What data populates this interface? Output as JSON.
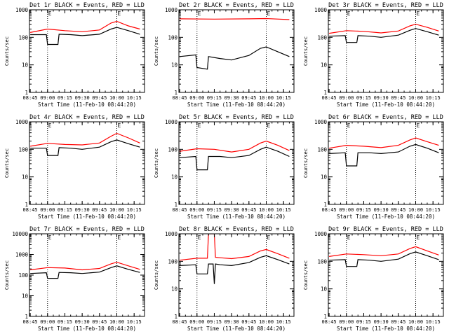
{
  "figure": {
    "colors": {
      "events": "#000000",
      "lld": "#ff0000",
      "axis": "#000000",
      "background": "#ffffff"
    }
  },
  "chart_data": [
    {
      "type": "line",
      "title": "Det 1r BLACK = Events, RED = LLD",
      "xlabel": "Start Time (11-Feb-10 08:44:20)",
      "ylabel": "Counts/sec",
      "y_scale": "log",
      "ylim": [
        1,
        1000
      ],
      "y_ticks": [
        "1",
        "10",
        "100",
        "1000"
      ],
      "x_ticks": [
        "08:45",
        "09:00",
        "09:15",
        "09:30",
        "09:45",
        "10:00",
        "10:15"
      ],
      "xlim": [
        "08:44:20",
        "10:24:00"
      ],
      "annotation": "E",
      "vlines": [
        "09:00",
        "10:00"
      ],
      "dotted_vlines": [
        "09:00",
        "10:00"
      ],
      "grid": false,
      "series": [
        {
          "name": "LLD",
          "color": "#ff0000",
          "x": [
            "08:45",
            "09:00",
            "09:15",
            "09:30",
            "09:45",
            "09:55",
            "10:00",
            "10:10",
            "10:20"
          ],
          "values": [
            150,
            200,
            175,
            160,
            185,
            330,
            380,
            260,
            200
          ]
        },
        {
          "name": "Events",
          "color": "#000000",
          "x": [
            "08:45",
            "08:59",
            "09:00",
            "09:09",
            "09:10",
            "09:20",
            "09:30",
            "09:45",
            "09:55",
            "10:00",
            "10:10",
            "10:20"
          ],
          "values": [
            125,
            125,
            55,
            55,
            130,
            125,
            115,
            130,
            200,
            230,
            175,
            130
          ]
        }
      ]
    },
    {
      "type": "line",
      "title": "Det 2r BLACK = Events, RED = LLD",
      "xlabel": "Start Time (11-Feb-10 08:44:20)",
      "ylabel": "Counts/sec",
      "y_scale": "log",
      "ylim": [
        1,
        1000
      ],
      "y_ticks": [
        "1",
        "10",
        "100",
        "1000"
      ],
      "x_ticks": [
        "08:45",
        "09:00",
        "09:15",
        "09:30",
        "09:45",
        "10:00",
        "10:15"
      ],
      "xlim": [
        "08:44:20",
        "10:24:00"
      ],
      "annotation": "E",
      "vlines": [
        "09:00",
        "10:00"
      ],
      "dotted_vlines": [
        "09:00",
        "10:00"
      ],
      "grid": false,
      "series": [
        {
          "name": "LLD",
          "color": "#ff0000",
          "x": [
            "08:45",
            "09:15",
            "09:45",
            "10:00",
            "10:20"
          ],
          "values": [
            470,
            460,
            470,
            480,
            440
          ]
        },
        {
          "name": "Events",
          "color": "#000000",
          "x": [
            "08:45",
            "08:59",
            "09:00",
            "09:09",
            "09:10",
            "09:20",
            "09:30",
            "09:45",
            "09:55",
            "10:00",
            "10:10",
            "10:20"
          ],
          "values": [
            20,
            23,
            8,
            7,
            20,
            17,
            15,
            22,
            40,
            45,
            30,
            20
          ]
        }
      ]
    },
    {
      "type": "line",
      "title": "Det 3r BLACK = Events, RED = LLD",
      "xlabel": "Start Time (11-Feb-10 08:44:20)",
      "ylabel": "Counts/sec",
      "y_scale": "log",
      "ylim": [
        1,
        1000
      ],
      "y_ticks": [
        "1",
        "10",
        "100",
        "1000"
      ],
      "x_ticks": [
        "08:45",
        "09:00",
        "09:15",
        "09:30",
        "09:45",
        "10:00",
        "10:15"
      ],
      "xlim": [
        "08:44:20",
        "10:24:00"
      ],
      "annotation": "E",
      "vlines": [
        "09:00",
        "10:00"
      ],
      "dotted_vlines": [
        "09:00",
        "10:00"
      ],
      "grid": false,
      "series": [
        {
          "name": "LLD",
          "color": "#ff0000",
          "x": [
            "08:45",
            "09:00",
            "09:15",
            "09:30",
            "09:45",
            "09:55",
            "10:00",
            "10:10",
            "10:20"
          ],
          "values": [
            140,
            175,
            165,
            145,
            170,
            260,
            300,
            230,
            170
          ]
        },
        {
          "name": "Events",
          "color": "#000000",
          "x": [
            "08:45",
            "08:59",
            "09:00",
            "09:09",
            "09:10",
            "09:20",
            "09:30",
            "09:45",
            "09:55",
            "10:00",
            "10:10",
            "10:20"
          ],
          "values": [
            110,
            115,
            65,
            65,
            115,
            110,
            100,
            120,
            180,
            210,
            160,
            120
          ]
        }
      ]
    },
    {
      "type": "line",
      "title": "Det 4r BLACK = Events, RED = LLD",
      "xlabel": "Start Time (11-Feb-10 08:44:20)",
      "ylabel": "Counts/sec",
      "y_scale": "log",
      "ylim": [
        1,
        1000
      ],
      "y_ticks": [
        "1",
        "10",
        "100",
        "1000"
      ],
      "x_ticks": [
        "08:45",
        "09:00",
        "09:15",
        "09:30",
        "09:45",
        "10:00",
        "10:15"
      ],
      "xlim": [
        "08:44:20",
        "10:24:00"
      ],
      "annotation": "E",
      "vlines": [
        "09:00",
        "10:00"
      ],
      "dotted_vlines": [
        "09:00",
        "10:00"
      ],
      "grid": false,
      "series": [
        {
          "name": "LLD",
          "color": "#ff0000",
          "x": [
            "08:45",
            "09:00",
            "09:15",
            "09:30",
            "09:45",
            "09:55",
            "10:00",
            "10:10",
            "10:20"
          ],
          "values": [
            130,
            165,
            150,
            145,
            170,
            300,
            380,
            260,
            170
          ]
        },
        {
          "name": "Events",
          "color": "#000000",
          "x": [
            "08:45",
            "08:59",
            "09:00",
            "09:09",
            "09:10",
            "09:20",
            "09:30",
            "09:45",
            "09:55",
            "10:00",
            "10:10",
            "10:20"
          ],
          "values": [
            110,
            110,
            60,
            60,
            115,
            110,
            100,
            120,
            190,
            220,
            160,
            120
          ]
        }
      ]
    },
    {
      "type": "line",
      "title": "Det 5r BLACK = Events, RED = LLD",
      "xlabel": "Start Time (11-Feb-10 08:44:20)",
      "ylabel": "Counts/sec",
      "y_scale": "log",
      "ylim": [
        1,
        1000
      ],
      "y_ticks": [
        "1",
        "10",
        "100",
        "1000"
      ],
      "x_ticks": [
        "08:45",
        "09:00",
        "09:15",
        "09:30",
        "09:45",
        "10:00",
        "10:15"
      ],
      "xlim": [
        "08:44:20",
        "10:24:00"
      ],
      "annotation": "E",
      "vlines": [
        "09:00",
        "10:00"
      ],
      "dotted_vlines": [
        "09:00",
        "10:00"
      ],
      "grid": false,
      "series": [
        {
          "name": "LLD",
          "color": "#ff0000",
          "x": [
            "08:45",
            "09:00",
            "09:15",
            "09:30",
            "09:45",
            "09:55",
            "10:00",
            "10:10",
            "10:20"
          ],
          "values": [
            85,
            105,
            100,
            80,
            100,
            170,
            200,
            140,
            90
          ]
        },
        {
          "name": "Events",
          "color": "#000000",
          "x": [
            "08:45",
            "08:59",
            "09:00",
            "09:09",
            "09:10",
            "09:20",
            "09:30",
            "09:45",
            "09:55",
            "10:00",
            "10:10",
            "10:20"
          ],
          "values": [
            50,
            55,
            18,
            18,
            55,
            55,
            50,
            60,
            100,
            120,
            85,
            55
          ]
        }
      ]
    },
    {
      "type": "line",
      "title": "Det 6r BLACK = Events, RED = LLD",
      "xlabel": "Start Time (11-Feb-10 08:44:20)",
      "ylabel": "Counts/sec",
      "y_scale": "log",
      "ylim": [
        1,
        1000
      ],
      "y_ticks": [
        "1",
        "10",
        "100",
        "1000"
      ],
      "x_ticks": [
        "08:45",
        "09:00",
        "09:15",
        "09:30",
        "09:45",
        "10:00",
        "10:15"
      ],
      "xlim": [
        "08:44:20",
        "10:24:00"
      ],
      "annotation": "E",
      "vlines": [
        "09:00",
        "10:00"
      ],
      "dotted_vlines": [
        "09:00",
        "10:00"
      ],
      "grid": false,
      "series": [
        {
          "name": "LLD",
          "color": "#ff0000",
          "x": [
            "08:45",
            "09:00",
            "09:15",
            "09:30",
            "09:45",
            "09:55",
            "10:00",
            "10:10",
            "10:20"
          ],
          "values": [
            110,
            140,
            130,
            115,
            140,
            220,
            260,
            190,
            140
          ]
        },
        {
          "name": "Events",
          "color": "#000000",
          "x": [
            "08:45",
            "08:59",
            "09:00",
            "09:09",
            "09:10",
            "09:20",
            "09:30",
            "09:45",
            "09:55",
            "10:00",
            "10:10",
            "10:20"
          ],
          "values": [
            70,
            75,
            25,
            25,
            75,
            75,
            70,
            80,
            130,
            150,
            110,
            75
          ]
        }
      ]
    },
    {
      "type": "line",
      "title": "Det 7r BLACK = Events, RED = LLD",
      "xlabel": "Start Time (11-Feb-10 08:44:20)",
      "ylabel": "Counts/sec",
      "y_scale": "log",
      "ylim": [
        1,
        10000
      ],
      "y_ticks": [
        "1",
        "10",
        "100",
        "1000",
        "10000"
      ],
      "x_ticks": [
        "08:45",
        "09:00",
        "09:15",
        "09:30",
        "09:45",
        "10:00",
        "10:15"
      ],
      "xlim": [
        "08:44:20",
        "10:24:00"
      ],
      "annotation": "E",
      "vlines": [
        "09:00",
        "10:00"
      ],
      "dotted_vlines": [
        "09:00",
        "10:00"
      ],
      "grid": false,
      "series": [
        {
          "name": "LLD",
          "color": "#ff0000",
          "x": [
            "08:45",
            "09:00",
            "09:15",
            "09:30",
            "09:45",
            "09:55",
            "10:00",
            "10:10",
            "10:20"
          ],
          "values": [
            180,
            230,
            220,
            180,
            210,
            350,
            420,
            280,
            190
          ]
        },
        {
          "name": "Events",
          "color": "#000000",
          "x": [
            "08:45",
            "08:59",
            "09:00",
            "09:09",
            "09:10",
            "09:20",
            "09:30",
            "09:45",
            "09:55",
            "10:00",
            "10:10",
            "10:20"
          ],
          "values": [
            120,
            130,
            70,
            70,
            135,
            130,
            120,
            140,
            230,
            280,
            190,
            135
          ]
        }
      ]
    },
    {
      "type": "line",
      "title": "Det 8r BLACK = Events, RED = LLD",
      "xlabel": "Start Time (11-Feb-10 08:44:20)",
      "ylabel": "Counts/sec",
      "y_scale": "log",
      "ylim": [
        1,
        1000
      ],
      "y_ticks": [
        "1",
        "10",
        "100",
        "1000"
      ],
      "x_ticks": [
        "08:45",
        "09:00",
        "09:15",
        "09:30",
        "09:45",
        "10:00",
        "10:15"
      ],
      "xlim": [
        "08:44:20",
        "10:24:00"
      ],
      "annotation": "E",
      "vlines": [
        "09:00",
        "10:00"
      ],
      "dotted_vlines": [
        "09:00",
        "10:00"
      ],
      "grid": false,
      "series": [
        {
          "name": "LLD",
          "color": "#ff0000",
          "x": [
            "08:45",
            "09:00",
            "09:09",
            "09:10",
            "09:14",
            "09:15",
            "09:16",
            "09:20",
            "09:30",
            "09:45",
            "09:55",
            "10:00",
            "10:10",
            "10:20"
          ],
          "values": [
            110,
            130,
            130,
            1000,
            1000,
            1000,
            140,
            135,
            125,
            150,
            240,
            270,
            190,
            130
          ]
        },
        {
          "name": "Events",
          "color": "#000000",
          "x": [
            "08:45",
            "08:59",
            "09:00",
            "09:09",
            "09:10",
            "09:14",
            "09:15",
            "09:16",
            "09:20",
            "09:30",
            "09:45",
            "09:55",
            "10:00",
            "10:10",
            "10:20"
          ],
          "values": [
            70,
            75,
            35,
            35,
            80,
            80,
            15,
            80,
            75,
            70,
            90,
            140,
            160,
            115,
            80
          ]
        }
      ]
    },
    {
      "type": "line",
      "title": "Det 9r BLACK = Events, RED = LLD",
      "xlabel": "Start Time (11-Feb-10 08:44:20)",
      "ylabel": "Counts/sec",
      "y_scale": "log",
      "ylim": [
        1,
        1000
      ],
      "y_ticks": [
        "1",
        "10",
        "100",
        "1000"
      ],
      "x_ticks": [
        "08:45",
        "09:00",
        "09:15",
        "09:30",
        "09:45",
        "10:00",
        "10:15"
      ],
      "xlim": [
        "08:44:20",
        "10:24:00"
      ],
      "annotation": "E",
      "vlines": [
        "09:00",
        "10:00"
      ],
      "dotted_vlines": [
        "09:00",
        "10:00"
      ],
      "grid": false,
      "series": [
        {
          "name": "LLD",
          "color": "#ff0000",
          "x": [
            "08:45",
            "09:00",
            "09:15",
            "09:30",
            "09:45",
            "09:55",
            "10:00",
            "10:10",
            "10:20"
          ],
          "values": [
            150,
            185,
            175,
            160,
            185,
            290,
            340,
            240,
            170
          ]
        },
        {
          "name": "Events",
          "color": "#000000",
          "x": [
            "08:45",
            "08:59",
            "09:00",
            "09:09",
            "09:10",
            "09:20",
            "09:30",
            "09:45",
            "09:55",
            "10:00",
            "10:10",
            "10:20"
          ],
          "values": [
            110,
            115,
            65,
            65,
            115,
            110,
            100,
            120,
            190,
            220,
            160,
            115
          ]
        }
      ]
    }
  ]
}
